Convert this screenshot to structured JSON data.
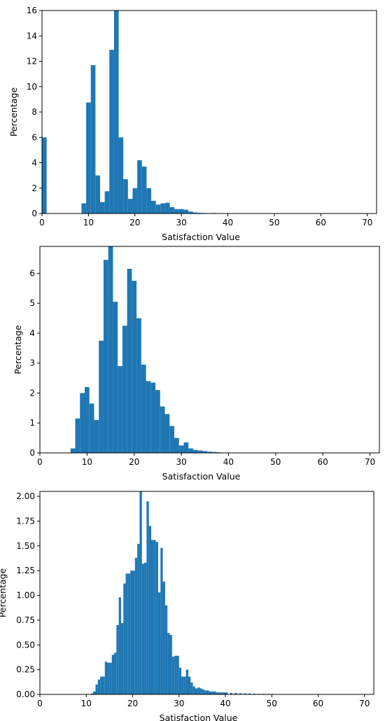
{
  "chart_data": [
    {
      "type": "bar",
      "xlabel": "Satisfaction Value",
      "ylabel": "Percentage",
      "xlim": [
        0,
        72
      ],
      "ylim": [
        0,
        16
      ],
      "xticks": [
        0,
        10,
        20,
        30,
        40,
        50,
        60,
        70
      ],
      "yticks": [
        0,
        2,
        4,
        6,
        8,
        10,
        12,
        14,
        16
      ],
      "ytick_labels": [
        "0",
        "2",
        "4",
        "6",
        "8",
        "10",
        "12",
        "14",
        "16"
      ],
      "bin_width": 1,
      "color": "#1f77b4",
      "bins": [
        [
          0,
          6
        ],
        [
          8.5,
          0.8
        ],
        [
          9.5,
          8.75
        ],
        [
          10.5,
          11.7
        ],
        [
          11.5,
          3
        ],
        [
          12.5,
          0.9
        ],
        [
          13.5,
          1.75
        ],
        [
          14.5,
          12.9
        ],
        [
          15.5,
          16
        ],
        [
          16.5,
          6
        ],
        [
          17.5,
          2.7
        ],
        [
          18.5,
          1.15
        ],
        [
          19.5,
          2
        ],
        [
          20.5,
          4.2
        ],
        [
          21.5,
          3.7
        ],
        [
          22.5,
          2
        ],
        [
          23.5,
          1
        ],
        [
          24.5,
          0.7
        ],
        [
          25.5,
          0.8
        ],
        [
          26.5,
          0.85
        ],
        [
          27.5,
          0.5
        ],
        [
          28.5,
          0.35
        ],
        [
          29.5,
          0.35
        ],
        [
          30.5,
          0.3
        ],
        [
          31.5,
          0.15
        ],
        [
          32.5,
          0.08
        ],
        [
          33.5,
          0.05
        ],
        [
          34.5,
          0.04
        ],
        [
          35.5,
          0.03
        ],
        [
          36.5,
          0.04
        ],
        [
          37.5,
          0.02
        ]
      ]
    },
    {
      "type": "bar",
      "xlabel": "Satisfaction Value",
      "ylabel": "Percentage",
      "xlim": [
        0,
        72
      ],
      "ylim": [
        0,
        6.9
      ],
      "xticks": [
        0,
        10,
        20,
        30,
        40,
        50,
        60,
        70
      ],
      "yticks": [
        0,
        1,
        2,
        3,
        4,
        5,
        6
      ],
      "ytick_labels": [
        "0",
        "1",
        "2",
        "3",
        "4",
        "5",
        "6"
      ],
      "bin_width": 1,
      "color": "#1f77b4",
      "bins": [
        [
          6.5,
          0.15
        ],
        [
          7.5,
          1.15
        ],
        [
          8.5,
          2.0
        ],
        [
          9.5,
          2.2
        ],
        [
          10.5,
          1.65
        ],
        [
          11.5,
          1.1
        ],
        [
          12.5,
          3.75
        ],
        [
          13.5,
          6.45
        ],
        [
          14.5,
          6.9
        ],
        [
          15.5,
          5.05
        ],
        [
          16.5,
          2.9
        ],
        [
          17.5,
          4.25
        ],
        [
          18.5,
          6.15
        ],
        [
          19.5,
          5.75
        ],
        [
          20.5,
          4.5
        ],
        [
          21.5,
          2.95
        ],
        [
          22.5,
          2.4
        ],
        [
          23.5,
          2.35
        ],
        [
          24.5,
          2.1
        ],
        [
          25.5,
          1.55
        ],
        [
          26.5,
          1.3
        ],
        [
          27.5,
          0.9
        ],
        [
          28.5,
          0.5
        ],
        [
          29.5,
          0.25
        ],
        [
          30.5,
          0.35
        ],
        [
          31.5,
          0.15
        ],
        [
          32.5,
          0.1
        ],
        [
          33.5,
          0.08
        ],
        [
          34.5,
          0.06
        ],
        [
          35.5,
          0.04
        ],
        [
          36.5,
          0.03
        ],
        [
          37.5,
          0.02
        ],
        [
          38.5,
          0.01
        ]
      ]
    },
    {
      "type": "bar",
      "xlabel": "Satisfaction Value",
      "ylabel": "Percentage",
      "xlim": [
        0,
        72
      ],
      "ylim": [
        0,
        2.05
      ],
      "xticks": [
        0,
        10,
        20,
        30,
        40,
        50,
        60,
        70
      ],
      "yticks": [
        0,
        0.25,
        0.5,
        0.75,
        1.0,
        1.25,
        1.5,
        1.75,
        2.0
      ],
      "ytick_labels": [
        "0.00",
        "0.25",
        "0.50",
        "0.75",
        "1.00",
        "1.25",
        "1.50",
        "1.75",
        "2.00"
      ],
      "bin_width": 0.5,
      "color": "#1f77b4",
      "bins": [
        [
          11.0,
          0.01
        ],
        [
          11.5,
          0.03
        ],
        [
          12.0,
          0.1
        ],
        [
          12.5,
          0.15
        ],
        [
          13.0,
          0.18
        ],
        [
          13.5,
          0.18
        ],
        [
          14.0,
          0.33
        ],
        [
          14.5,
          0.32
        ],
        [
          15.0,
          0.32
        ],
        [
          15.5,
          0.4
        ],
        [
          16.0,
          0.42
        ],
        [
          16.5,
          0.7
        ],
        [
          17.0,
          0.98
        ],
        [
          17.5,
          0.72
        ],
        [
          18.0,
          1.12
        ],
        [
          18.5,
          1.22
        ],
        [
          19.0,
          1.22
        ],
        [
          19.5,
          1.25
        ],
        [
          20.0,
          1.25
        ],
        [
          20.5,
          1.38
        ],
        [
          21.0,
          1.52
        ],
        [
          21.5,
          2.05
        ],
        [
          22.0,
          1.32
        ],
        [
          22.5,
          1.33
        ],
        [
          23.0,
          1.95
        ],
        [
          23.5,
          1.7
        ],
        [
          24.0,
          1.56
        ],
        [
          24.5,
          1.56
        ],
        [
          25.0,
          1.54
        ],
        [
          25.5,
          1.03
        ],
        [
          26.0,
          1.48
        ],
        [
          26.5,
          1.14
        ],
        [
          27.0,
          0.9
        ],
        [
          27.5,
          0.62
        ],
        [
          28.0,
          0.6
        ],
        [
          28.5,
          0.38
        ],
        [
          29.0,
          0.39
        ],
        [
          29.5,
          0.39
        ],
        [
          30.0,
          0.27
        ],
        [
          30.5,
          0.18
        ],
        [
          31.0,
          0.18
        ],
        [
          31.5,
          0.25
        ],
        [
          32.0,
          0.18
        ],
        [
          32.5,
          0.12
        ],
        [
          33.0,
          0.08
        ],
        [
          33.5,
          0.06
        ],
        [
          34.0,
          0.07
        ],
        [
          34.5,
          0.06
        ],
        [
          35.0,
          0.05
        ],
        [
          35.5,
          0.04
        ],
        [
          36.0,
          0.04
        ],
        [
          36.5,
          0.03
        ],
        [
          37.0,
          0.03
        ],
        [
          37.5,
          0.03
        ],
        [
          38.0,
          0.02
        ],
        [
          38.5,
          0.02
        ],
        [
          39.0,
          0.02
        ],
        [
          39.5,
          0.02
        ],
        [
          40.0,
          0.02
        ],
        [
          41.0,
          0.015
        ],
        [
          42.0,
          0.015
        ],
        [
          43.0,
          0.012
        ],
        [
          44.0,
          0.01
        ],
        [
          45.0,
          0.01
        ],
        [
          46.0,
          0.008
        ],
        [
          47.0,
          0.006
        ],
        [
          48.0,
          0.006
        ],
        [
          49.0,
          0.005
        ],
        [
          50.0,
          0.005
        ],
        [
          51.0,
          0.004
        ],
        [
          52.0,
          0.004
        ],
        [
          53.0,
          0.003
        ],
        [
          54.0,
          0.003
        ],
        [
          55.0,
          0.003
        ],
        [
          56.0,
          0.002
        ],
        [
          57.0,
          0.002
        ]
      ]
    }
  ]
}
